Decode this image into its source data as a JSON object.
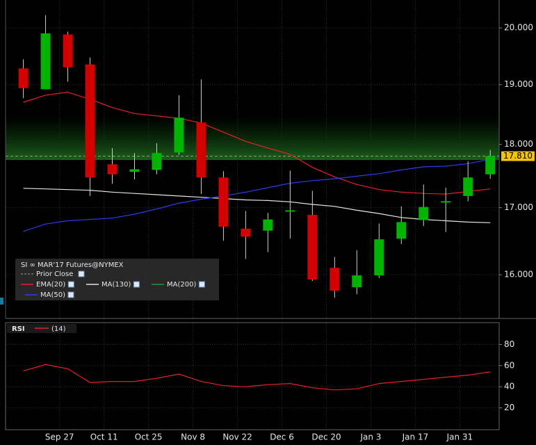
{
  "chart_data": [
    {
      "type": "candlestick",
      "title": "SI ∞ MAR'17 Futures@NYMEX",
      "categories": [
        null,
        null,
        null,
        null,
        null,
        null,
        null,
        null,
        null,
        null,
        null,
        null,
        null,
        null,
        null,
        null,
        null,
        null,
        null,
        null,
        null,
        null
      ],
      "open": [
        19.28,
        18.92,
        19.88,
        19.35,
        17.68,
        17.56,
        17.59,
        17.87,
        18.36,
        17.47,
        16.68,
        16.65,
        16.94,
        16.89,
        16.1,
        15.82,
        15.99,
        16.53,
        16.81,
        17.08,
        17.18,
        17.52
      ],
      "high": [
        19.44,
        20.23,
        19.93,
        19.47,
        17.94,
        17.86,
        18.02,
        18.82,
        19.09,
        17.57,
        16.95,
        16.92,
        17.58,
        17.26,
        16.26,
        16.36,
        16.76,
        17.02,
        17.36,
        17.31,
        17.73,
        17.91
      ],
      "low": [
        18.77,
        18.92,
        19.05,
        17.18,
        17.37,
        17.44,
        17.52,
        17.83,
        17.21,
        16.5,
        16.23,
        16.33,
        16.53,
        15.91,
        15.67,
        15.72,
        15.95,
        16.45,
        16.72,
        16.63,
        17.1,
        17.45
      ],
      "close": [
        18.94,
        19.9,
        19.3,
        17.47,
        17.52,
        17.6,
        17.86,
        18.44,
        17.47,
        16.71,
        16.56,
        16.82,
        16.96,
        15.93,
        15.77,
        15.99,
        16.52,
        16.78,
        17.01,
        17.1,
        17.47,
        17.81
      ],
      "up_color": "#00b400",
      "down_color": "#d40000",
      "series": [
        {
          "name": "EMA(20)",
          "color": "#e8202a",
          "values": [
            18.7,
            18.82,
            18.87,
            18.75,
            18.61,
            18.51,
            18.47,
            18.43,
            18.35,
            18.2,
            18.05,
            17.94,
            17.84,
            17.63,
            17.48,
            17.36,
            17.28,
            17.24,
            17.22,
            17.21,
            17.25,
            17.29
          ]
        },
        {
          "name": "MA(130)",
          "color": "#e6e6e6",
          "values": [
            17.3,
            17.29,
            17.28,
            17.27,
            17.24,
            17.22,
            17.2,
            17.18,
            17.16,
            17.14,
            17.12,
            17.11,
            17.09,
            17.05,
            17.02,
            16.96,
            16.91,
            16.85,
            16.82,
            16.8,
            16.78,
            16.77
          ]
        },
        {
          "name": "MA(200)",
          "color": "#1f9a2e",
          "values": [
            null,
            null,
            null,
            null,
            null,
            null,
            null,
            null,
            null,
            null,
            null,
            null,
            null,
            null,
            null,
            null,
            null,
            null,
            null,
            null,
            null,
            null
          ]
        },
        {
          "name": "MA(50)",
          "color": "#2a3fe6",
          "values": [
            16.64,
            16.75,
            16.8,
            16.82,
            16.84,
            16.9,
            16.98,
            17.07,
            17.13,
            17.18,
            17.24,
            17.31,
            17.38,
            17.42,
            17.45,
            17.49,
            17.53,
            17.59,
            17.64,
            17.65,
            17.69,
            17.76
          ]
        }
      ],
      "prior_close": {
        "name": "Prior Close",
        "color": "#9a9a9a",
        "value": 17.81,
        "label": "17.810"
      },
      "log": true,
      "ylim": [
        15.38,
        20.51
      ],
      "yticks": [
        {
          "value": 16,
          "label": "16.000"
        },
        {
          "value": 17,
          "label": "17.000"
        },
        {
          "value": 18,
          "label": "18.000"
        },
        {
          "value": 19,
          "label": "19.000"
        },
        {
          "value": 20,
          "label": "20.000"
        }
      ],
      "xlim": [
        -0.8,
        21.4
      ],
      "xticks": [
        {
          "value": 1.63,
          "label": "Sep 27"
        },
        {
          "value": 3.63,
          "label": "Oct 11"
        },
        {
          "value": 5.63,
          "label": "Oct 25"
        },
        {
          "value": 7.63,
          "label": "Nov 8"
        },
        {
          "value": 9.63,
          "label": "Nov 22"
        },
        {
          "value": 11.63,
          "label": "Dec 6"
        },
        {
          "value": 13.63,
          "label": "Dec 20"
        },
        {
          "value": 15.63,
          "label": "Jan 3"
        },
        {
          "value": 17.63,
          "label": "Jan 17"
        },
        {
          "value": 19.63,
          "label": "Jan 31"
        }
      ]
    },
    {
      "type": "line",
      "title": "RSI",
      "categories": [
        null,
        null,
        null,
        null,
        null,
        null,
        null,
        null,
        null,
        null,
        null,
        null,
        null,
        null,
        null,
        null,
        null,
        null,
        null,
        null,
        null,
        null
      ],
      "series": [
        {
          "name": "(14)",
          "color": "#e8202a",
          "values": [
            55,
            61,
            57,
            44,
            45,
            45,
            48,
            52,
            45,
            41,
            40,
            42,
            43,
            39,
            37,
            38,
            43,
            45,
            47,
            49,
            51,
            54
          ]
        }
      ],
      "ylim": [
        0,
        100
      ],
      "yticks": [
        20,
        40,
        60,
        80
      ],
      "xlim": [
        -0.8,
        21.4
      ]
    }
  ]
}
